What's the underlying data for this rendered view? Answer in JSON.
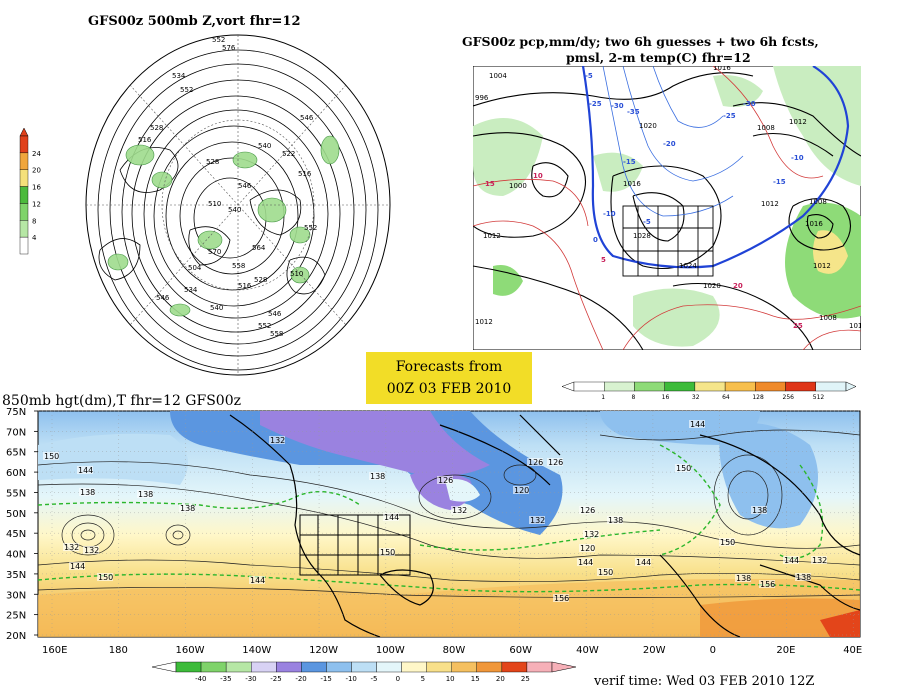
{
  "panels": {
    "top_left": {
      "title": "GFS00z   500mb  Z,vort     fhr=12",
      "contour_labels": [
        "552",
        "576",
        "534",
        "552",
        "528",
        "516",
        "540",
        "522",
        "528",
        "546",
        "546",
        "516",
        "510",
        "540",
        "552",
        "570",
        "564",
        "558",
        "504",
        "528",
        "534",
        "546",
        "540",
        "516",
        "510",
        "546",
        "552",
        "558"
      ],
      "colorbar": {
        "ticks": [
          "4",
          "8",
          "12",
          "16",
          "20",
          "24"
        ],
        "colors": [
          "#ffffff",
          "#b6e7a5",
          "#7fd36a",
          "#4cba3c",
          "#f4e07a",
          "#f0a63c",
          "#e0411b"
        ]
      }
    },
    "top_right": {
      "title_line1": "GFS00z pcp,mm/dy; two 6h guesses + two 6h fcsts,",
      "title_line2": "pmsl, 2-m temp(C)  fhr=12",
      "contour_labels": [
        "1004",
        "996",
        "1016",
        "1020",
        "1028",
        "1000",
        "1008",
        "1012",
        "1016",
        "1024",
        "1020",
        "1012",
        "1008",
        "1012",
        "1016",
        "1012",
        "1012",
        "1008",
        "1012"
      ],
      "temp_labels": [
        "-5",
        "-25",
        "-30",
        "-35",
        "-20",
        "-15",
        "-10",
        "-5",
        "0",
        "5",
        "10",
        "15",
        "20",
        "25",
        "-25",
        "-30",
        "-15",
        "-10"
      ],
      "colorbar": {
        "ticks": [
          "1",
          "8",
          "16",
          "32",
          "64",
          "128",
          "256",
          "512"
        ],
        "colors": [
          "#ffffff",
          "#d8f2d0",
          "#8edb78",
          "#3dbb3a",
          "#f5e58a",
          "#f7bf4d",
          "#ef8a2a",
          "#df3518",
          "#e0f4f8"
        ]
      }
    },
    "banner": {
      "line1": "Forecasts from",
      "line2": "00Z 03 FEB 2010"
    },
    "bottom": {
      "title": "850mb hgt(dm),T   fhr=12 GFS00z",
      "lat_labels": [
        "75N",
        "70N",
        "65N",
        "60N",
        "55N",
        "50N",
        "45N",
        "40N",
        "35N",
        "30N",
        "25N",
        "20N"
      ],
      "lon_labels": [
        "160E",
        "180",
        "160W",
        "140W",
        "120W",
        "100W",
        "80W",
        "60W",
        "40W",
        "20W",
        "0",
        "20E",
        "40E"
      ],
      "contour_labels": [
        "150",
        "144",
        "138",
        "132",
        "132",
        "138",
        "138",
        "144",
        "150",
        "144",
        "132",
        "138",
        "144",
        "150",
        "126",
        "120",
        "132",
        "126",
        "126",
        "132",
        "144",
        "150",
        "138",
        "132",
        "120",
        "126",
        "144",
        "150",
        "156",
        "144",
        "150",
        "138",
        "144",
        "132",
        "138",
        "138",
        "156"
      ],
      "colorbar": {
        "ticks": [
          "-40",
          "-35",
          "-30",
          "-25",
          "-20",
          "-15",
          "-10",
          "-5",
          "0",
          "5",
          "10",
          "15",
          "20",
          "25"
        ],
        "colors": [
          "#3dbb3a",
          "#7fd36a",
          "#b6e7a5",
          "#d8d2f4",
          "#9a82e0",
          "#5b96e0",
          "#8ec0ee",
          "#bddff5",
          "#e4f6fa",
          "#fff7c8",
          "#f8e08a",
          "#f5c060",
          "#f0973a",
          "#e3451a",
          "#f6b0b8"
        ]
      }
    }
  },
  "verif": "verif time: Wed 03 FEB 2010 12Z",
  "colors": {
    "land_warm": "#f5c87a",
    "ocean_cold": "#bfe3f0",
    "banner": "#f2dd27"
  }
}
